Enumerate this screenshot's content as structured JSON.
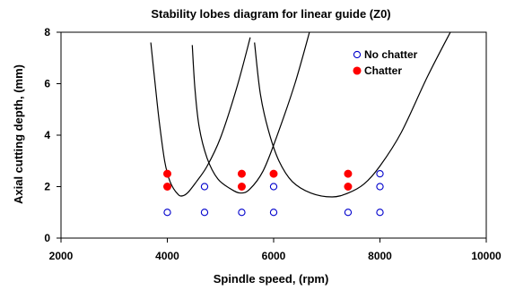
{
  "chart_data": {
    "type": "scatter",
    "title": "Stability lobes diagram for linear guide (Z0)",
    "xlabel": "Spindle speed, (rpm)",
    "ylabel": "Axial cutting depth, (mm)",
    "xlim": [
      2000,
      10000
    ],
    "ylim": [
      0,
      8
    ],
    "x_ticks": [
      2000,
      4000,
      6000,
      8000,
      10000
    ],
    "y_ticks": [
      0,
      2,
      4,
      6,
      8
    ],
    "grid": false,
    "legend_position": "top-right",
    "series": [
      {
        "name": "No chatter",
        "marker": "open-circle",
        "color": "#0000cc",
        "points": [
          [
            4000,
            1
          ],
          [
            4700,
            1
          ],
          [
            5400,
            1
          ],
          [
            6000,
            1
          ],
          [
            7400,
            1
          ],
          [
            8000,
            1
          ],
          [
            4700,
            2
          ],
          [
            6000,
            2
          ],
          [
            8000,
            2
          ],
          [
            8000,
            2.5
          ]
        ]
      },
      {
        "name": "Chatter",
        "marker": "filled-circle",
        "color": "#ff0000",
        "points": [
          [
            4000,
            2
          ],
          [
            4000,
            2.5
          ],
          [
            5400,
            2
          ],
          [
            5400,
            2.5
          ],
          [
            6000,
            2.5
          ],
          [
            7400,
            2
          ],
          [
            7400,
            2.5
          ]
        ]
      }
    ],
    "lobes": [
      {
        "color": "#000000",
        "points": [
          [
            3690,
            7.6
          ],
          [
            3760,
            6.2
          ],
          [
            3850,
            4.5
          ],
          [
            3950,
            3.0
          ],
          [
            4050,
            2.2
          ],
          [
            4200,
            1.7
          ],
          [
            4300,
            1.65
          ],
          [
            4400,
            1.8
          ],
          [
            4550,
            2.2
          ],
          [
            4750,
            2.8
          ],
          [
            5000,
            3.9
          ],
          [
            5300,
            5.8
          ],
          [
            5560,
            7.8
          ]
        ]
      },
      {
        "color": "#000000",
        "points": [
          [
            4470,
            7.5
          ],
          [
            4520,
            5.8
          ],
          [
            4600,
            4.3
          ],
          [
            4750,
            3.1
          ],
          [
            4950,
            2.3
          ],
          [
            5200,
            1.9
          ],
          [
            5380,
            1.75
          ],
          [
            5550,
            1.9
          ],
          [
            5800,
            2.6
          ],
          [
            6050,
            3.9
          ],
          [
            6400,
            6.0
          ],
          [
            6700,
            8.2
          ]
        ]
      },
      {
        "color": "#000000",
        "points": [
          [
            5640,
            7.6
          ],
          [
            5750,
            5.6
          ],
          [
            5900,
            4.2
          ],
          [
            6100,
            3.0
          ],
          [
            6350,
            2.2
          ],
          [
            6700,
            1.75
          ],
          [
            7100,
            1.6
          ],
          [
            7400,
            1.75
          ],
          [
            7700,
            2.1
          ],
          [
            8000,
            2.8
          ],
          [
            8400,
            4.1
          ],
          [
            8900,
            6.3
          ],
          [
            9350,
            8.1
          ]
        ]
      }
    ]
  }
}
